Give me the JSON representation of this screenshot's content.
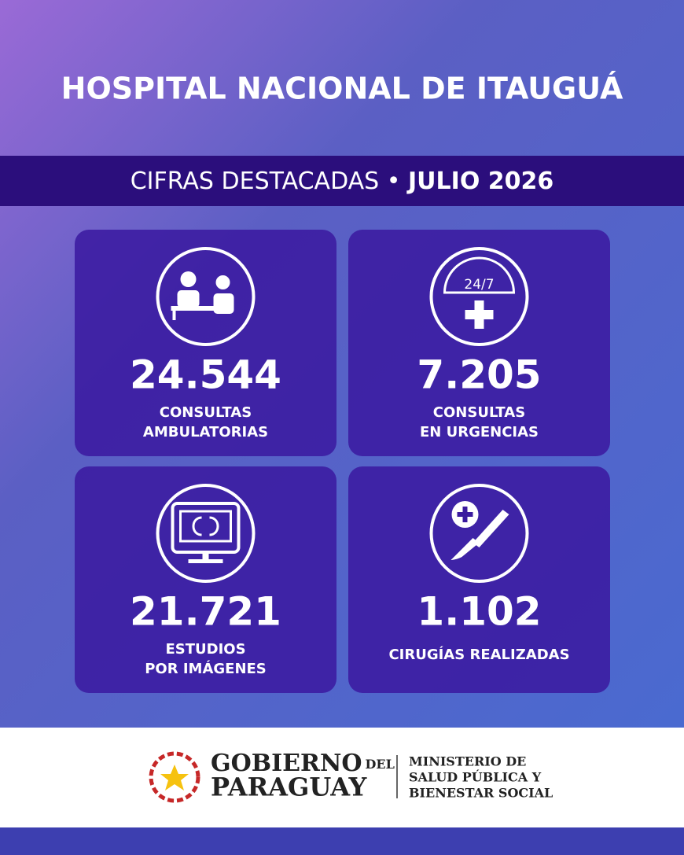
{
  "header": {
    "title": "HOSPITAL NACIONAL DE ITAUGUÁ"
  },
  "banner": {
    "label": "CIFRAS DESTACADAS",
    "separator": "•",
    "period": "JULIO 2026"
  },
  "cards": [
    {
      "value": "24.544",
      "label": [
        "CONSULTAS",
        "AMBULATORIAS"
      ]
    },
    {
      "value": "7.205",
      "label": [
        "CONSULTAS",
        "EN URGENCIAS"
      ],
      "icon_text": "24/7"
    },
    {
      "value": "21.721",
      "label": [
        "ESTUDIOS",
        "POR IMÁGENES"
      ]
    },
    {
      "value": "1.102",
      "label": [
        "CIRUGÍAS REALIZADAS"
      ]
    }
  ],
  "footer": {
    "gov_line1": "GOBIERNO",
    "gov_del": "DEL",
    "gov_line2": "PARAGUAY",
    "ministry": [
      "MINISTERIO DE",
      "SALUD PÚBLICA Y",
      "BIENESTAR SOCIAL"
    ]
  }
}
